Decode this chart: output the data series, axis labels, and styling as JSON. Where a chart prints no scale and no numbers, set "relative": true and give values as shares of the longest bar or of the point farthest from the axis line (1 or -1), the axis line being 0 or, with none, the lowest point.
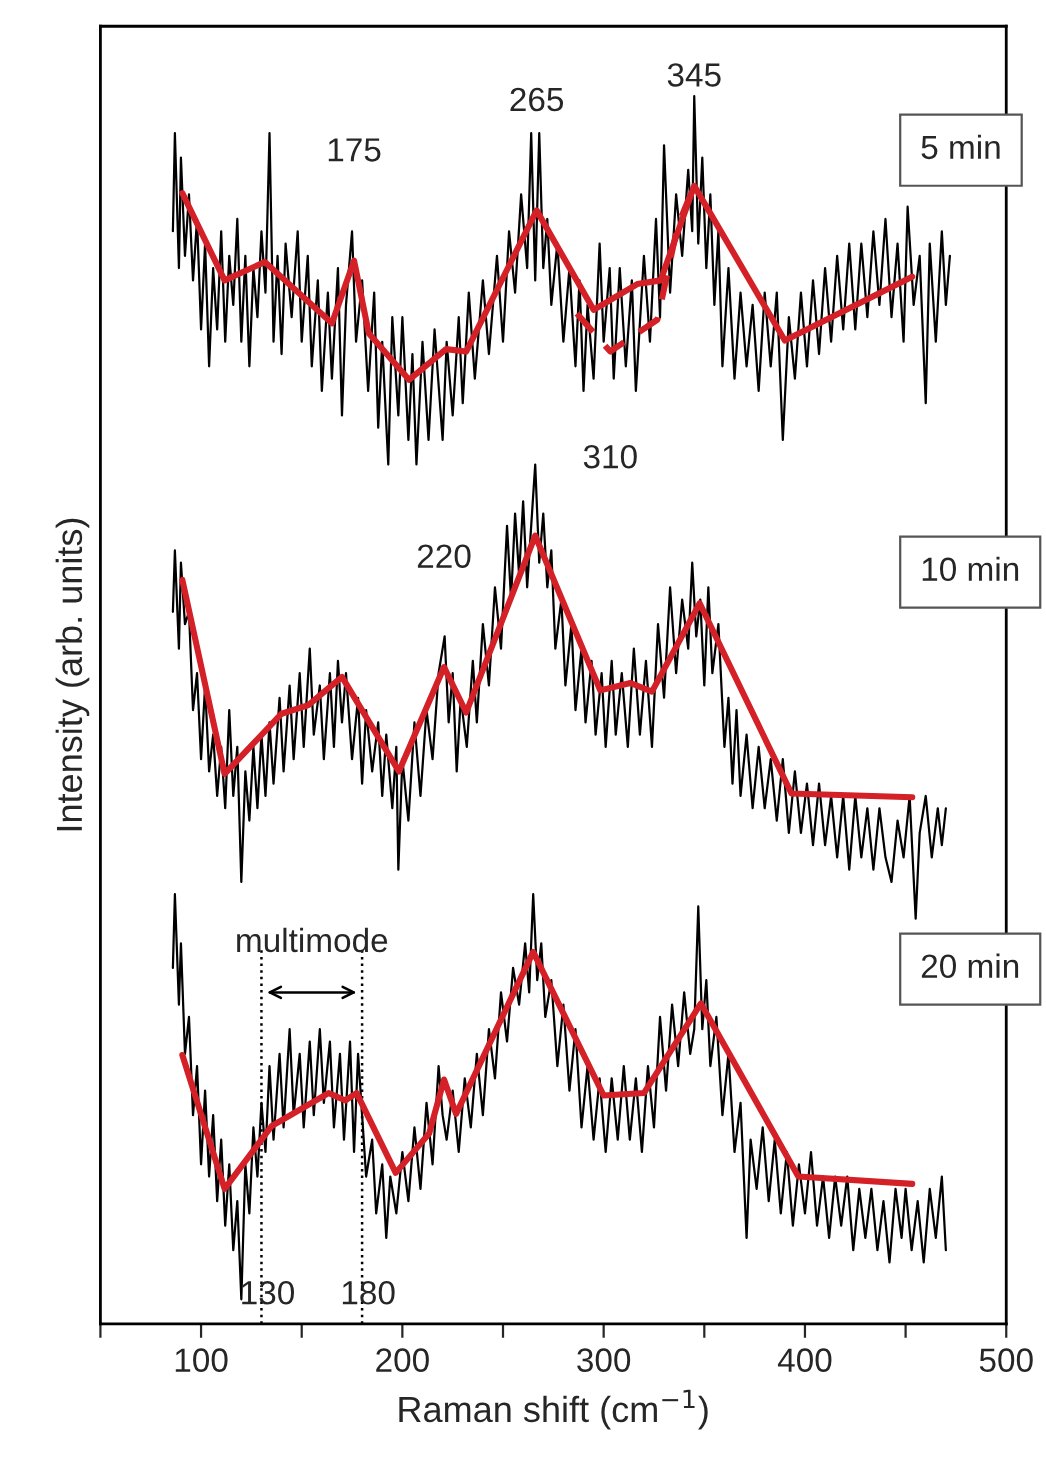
{
  "chart_data": {
    "type": "line",
    "relative": true,
    "xlabel": "Raman shift (cm$^{−1}$)",
    "ylabel": "Intensity (arb. units)",
    "xlim": [
      50,
      500
    ],
    "xticks": [
      {
        "value": 50,
        "label": null
      },
      100,
      {
        "value": 150,
        "label": null
      },
      200,
      {
        "value": 250,
        "label": null
      },
      300,
      {
        "value": 350,
        "label": null
      },
      400,
      {
        "value": 450,
        "label": null
      },
      500
    ],
    "grid": false,
    "legend": false,
    "marker": "none",
    "series": [
      {
        "name": "5 min",
        "color": "#000000",
        "x": [
          86,
          87,
          89,
          90,
          92,
          94,
          96,
          98,
          100,
          102,
          104,
          106,
          108,
          110,
          112,
          114,
          116,
          118,
          120,
          122,
          124,
          126,
          128,
          130,
          132,
          134,
          136,
          138,
          140,
          142,
          145,
          148,
          150,
          153,
          155,
          158,
          160,
          163,
          165,
          168,
          170,
          172,
          175,
          177,
          180,
          183,
          186,
          188,
          190,
          193,
          195,
          198,
          200,
          203,
          205,
          207,
          210,
          213,
          216,
          220,
          222,
          225,
          228,
          230,
          233,
          236,
          240,
          243,
          247,
          250,
          253,
          256,
          259,
          262,
          264,
          266,
          268,
          270,
          272,
          274,
          277,
          280,
          283,
          286,
          288,
          290,
          292,
          295,
          298,
          300,
          303,
          305,
          308,
          311,
          314,
          316,
          320,
          323,
          326,
          328,
          330,
          333,
          336,
          339,
          342,
          344,
          345,
          347,
          349,
          351,
          353,
          355,
          357,
          359,
          362,
          365,
          368,
          371,
          374,
          377,
          380,
          383,
          386,
          389,
          392,
          395,
          398,
          401,
          404,
          407,
          410,
          413,
          416,
          419,
          422,
          425,
          428,
          431,
          434,
          437,
          440,
          443,
          446,
          449,
          451,
          454,
          457,
          460,
          462,
          465,
          468,
          470,
          472
        ],
        "values": [
          0.89,
          0.97,
          0.86,
          0.95,
          0.87,
          0.92,
          0.85,
          0.9,
          0.81,
          0.88,
          0.78,
          0.86,
          0.81,
          0.89,
          0.8,
          0.87,
          0.83,
          0.9,
          0.8,
          0.87,
          0.78,
          0.86,
          0.82,
          0.89,
          0.84,
          0.97,
          0.8,
          0.87,
          0.79,
          0.88,
          0.82,
          0.89,
          0.8,
          0.87,
          0.78,
          0.85,
          0.76,
          0.84,
          0.77,
          0.86,
          0.74,
          0.83,
          0.89,
          0.8,
          0.85,
          0.76,
          0.84,
          0.73,
          0.8,
          0.7,
          0.82,
          0.74,
          0.82,
          0.72,
          0.79,
          0.7,
          0.8,
          0.72,
          0.81,
          0.72,
          0.8,
          0.74,
          0.82,
          0.75,
          0.84,
          0.77,
          0.85,
          0.79,
          0.87,
          0.8,
          0.89,
          0.84,
          0.92,
          0.86,
          0.97,
          0.85,
          0.97,
          0.86,
          0.9,
          0.83,
          0.88,
          0.8,
          0.86,
          0.78,
          0.85,
          0.76,
          0.83,
          0.77,
          0.88,
          0.8,
          0.86,
          0.77,
          0.86,
          0.78,
          0.85,
          0.76,
          0.87,
          0.8,
          0.9,
          0.82,
          0.96,
          0.84,
          0.92,
          0.87,
          0.94,
          0.89,
          1.0,
          0.88,
          0.95,
          0.86,
          0.92,
          0.83,
          0.89,
          0.78,
          0.86,
          0.77,
          0.84,
          0.78,
          0.83,
          0.76,
          0.84,
          0.78,
          0.84,
          0.72,
          0.82,
          0.77,
          0.84,
          0.78,
          0.85,
          0.79,
          0.86,
          0.8,
          0.87,
          0.81,
          0.88,
          0.81,
          0.88,
          0.82,
          0.89,
          0.83,
          0.9,
          0.82,
          0.88,
          0.8,
          0.91,
          0.83,
          0.87,
          0.75,
          0.88,
          0.8,
          0.89,
          0.83,
          0.87
        ]
      },
      {
        "color": "#d42027",
        "x": [
          90.7,
          111.7,
          131.7,
          165,
          176,
          183.3,
          203.3,
          221.7,
          231.7,
          266.7,
          295,
          316.7,
          328.3,
          345,
          390,
          453.3
        ],
        "values": [
          0.921,
          0.85,
          0.865,
          0.815,
          0.866,
          0.807,
          0.769,
          0.794,
          0.792,
          0.907,
          0.826,
          0.847,
          0.85,
          0.927,
          0.801,
          0.853
        ]
      },
      {
        "color": "#d42027",
        "line_style": "dashed",
        "x": [
          286.7,
          303.3,
          326.7,
          336.7,
          345
        ],
        "values": [
          0.823,
          0.792,
          0.818,
          0.894,
          0.927
        ]
      },
      {
        "name": "10 min",
        "color": "#000000",
        "x": [
          86,
          87,
          89,
          90,
          92,
          94,
          96,
          98,
          100,
          102,
          104,
          106,
          108,
          110,
          112,
          114,
          116,
          118,
          120,
          122,
          124,
          126,
          128,
          130,
          132,
          134,
          136,
          139,
          141,
          144,
          146,
          149,
          151,
          154,
          156,
          159,
          161,
          164,
          166,
          168,
          170,
          172,
          175,
          178,
          180,
          182,
          185,
          188,
          190,
          192,
          195,
          197,
          198,
          200,
          203,
          206,
          209,
          212,
          215,
          218,
          221,
          223,
          225,
          227,
          229,
          232,
          235,
          237,
          240,
          243,
          246,
          249,
          252,
          254,
          256,
          258,
          260,
          262,
          264,
          266,
          268,
          270,
          272,
          274,
          276,
          279,
          281,
          284,
          286,
          289,
          291,
          294,
          296,
          299,
          301,
          304,
          306,
          309,
          312,
          315,
          318,
          321,
          324,
          327,
          330,
          333,
          336,
          339,
          342,
          344,
          346,
          348,
          350,
          352,
          354,
          357,
          360,
          362,
          364,
          366,
          368,
          371,
          374,
          377,
          380,
          383,
          386,
          389,
          392,
          395,
          398,
          401,
          404,
          407,
          410,
          413,
          416,
          419,
          422,
          425,
          428,
          431,
          434,
          437,
          440,
          443,
          446,
          449,
          452,
          455,
          457,
          460,
          463,
          466,
          468,
          470
        ],
        "values": [
          0.58,
          0.63,
          0.55,
          0.62,
          0.57,
          0.58,
          0.5,
          0.53,
          0.46,
          0.52,
          0.45,
          0.48,
          0.43,
          0.47,
          0.42,
          0.5,
          0.43,
          0.47,
          0.36,
          0.45,
          0.41,
          0.47,
          0.42,
          0.48,
          0.43,
          0.49,
          0.44,
          0.51,
          0.45,
          0.52,
          0.46,
          0.53,
          0.47,
          0.55,
          0.48,
          0.52,
          0.46,
          0.53,
          0.47,
          0.54,
          0.49,
          0.53,
          0.46,
          0.51,
          0.44,
          0.5,
          0.45,
          0.49,
          0.43,
          0.48,
          0.42,
          0.47,
          0.37,
          0.46,
          0.41,
          0.49,
          0.43,
          0.5,
          0.46,
          0.53,
          0.56,
          0.49,
          0.53,
          0.45,
          0.51,
          0.47,
          0.54,
          0.49,
          0.57,
          0.52,
          0.6,
          0.55,
          0.65,
          0.59,
          0.66,
          0.61,
          0.67,
          0.6,
          0.65,
          0.7,
          0.62,
          0.66,
          0.6,
          0.63,
          0.55,
          0.59,
          0.52,
          0.57,
          0.5,
          0.55,
          0.49,
          0.54,
          0.48,
          0.53,
          0.47,
          0.54,
          0.48,
          0.53,
          0.47,
          0.55,
          0.48,
          0.54,
          0.47,
          0.57,
          0.51,
          0.6,
          0.53,
          0.59,
          0.55,
          0.62,
          0.56,
          0.59,
          0.52,
          0.6,
          0.53,
          0.57,
          0.47,
          0.51,
          0.44,
          0.5,
          0.43,
          0.48,
          0.42,
          0.47,
          0.42,
          0.46,
          0.41,
          0.46,
          0.4,
          0.45,
          0.4,
          0.44,
          0.39,
          0.44,
          0.39,
          0.43,
          0.38,
          0.43,
          0.37,
          0.43,
          0.38,
          0.42,
          0.37,
          0.42,
          0.38,
          0.36,
          0.41,
          0.38,
          0.43,
          0.33,
          0.4,
          0.43,
          0.38,
          0.42,
          0.39,
          0.42
        ]
      },
      {
        "color": "#d42027",
        "x": [
          90.7,
          111.7,
          140,
          153.3,
          170,
          198.3,
          220.7,
          231.7,
          266,
          298.3,
          313.3,
          324,
          347.7,
          393.3,
          453.3
        ],
        "values": [
          0.606,
          0.448,
          0.497,
          0.504,
          0.527,
          0.45,
          0.535,
          0.498,
          0.642,
          0.516,
          0.522,
          0.515,
          0.587,
          0.432,
          0.429
        ]
      },
      {
        "name": "20 min",
        "color": "#000000",
        "x": [
          86,
          87,
          89,
          90,
          92,
          94,
          96,
          98,
          100,
          102,
          104,
          106,
          108,
          110,
          112,
          114,
          116,
          118,
          120,
          122,
          124,
          126,
          128,
          130,
          132,
          134,
          136,
          139,
          141,
          144,
          146,
          149,
          151,
          154,
          156,
          159,
          161,
          164,
          166,
          169,
          171,
          174,
          176,
          178,
          180,
          182,
          185,
          187,
          190,
          192,
          194,
          197,
          200,
          203,
          206,
          209,
          212,
          215,
          218,
          220,
          222,
          225,
          228,
          231,
          234,
          237,
          240,
          243,
          246,
          249,
          252,
          255,
          258,
          261,
          263,
          265,
          267,
          269,
          271,
          274,
          277,
          280,
          283,
          286,
          289,
          292,
          295,
          298,
          301,
          304,
          307,
          310,
          313,
          316,
          319,
          322,
          325,
          328,
          331,
          334,
          337,
          340,
          343,
          345,
          347,
          349,
          351,
          353,
          356,
          359,
          362,
          365,
          368,
          371,
          373,
          376,
          379,
          382,
          385,
          388,
          391,
          394,
          397,
          400,
          403,
          406,
          409,
          412,
          415,
          418,
          421,
          424,
          427,
          430,
          433,
          436,
          439,
          442,
          445,
          448,
          450,
          453,
          456,
          459,
          462,
          465,
          468,
          470
        ],
        "values": [
          0.29,
          0.35,
          0.26,
          0.31,
          0.22,
          0.25,
          0.17,
          0.21,
          0.13,
          0.19,
          0.12,
          0.17,
          0.1,
          0.15,
          0.08,
          0.13,
          0.06,
          0.1,
          0.02,
          0.13,
          0.09,
          0.16,
          0.12,
          0.18,
          0.14,
          0.21,
          0.15,
          0.22,
          0.16,
          0.24,
          0.17,
          0.22,
          0.16,
          0.23,
          0.17,
          0.24,
          0.18,
          0.23,
          0.16,
          0.22,
          0.15,
          0.23,
          0.14,
          0.22,
          0.17,
          0.12,
          0.15,
          0.09,
          0.13,
          0.07,
          0.12,
          0.09,
          0.14,
          0.1,
          0.16,
          0.11,
          0.18,
          0.13,
          0.21,
          0.17,
          0.15,
          0.19,
          0.14,
          0.2,
          0.16,
          0.22,
          0.17,
          0.24,
          0.2,
          0.27,
          0.23,
          0.29,
          0.26,
          0.31,
          0.27,
          0.35,
          0.28,
          0.31,
          0.25,
          0.28,
          0.21,
          0.26,
          0.19,
          0.24,
          0.16,
          0.21,
          0.15,
          0.2,
          0.14,
          0.2,
          0.15,
          0.21,
          0.15,
          0.2,
          0.14,
          0.21,
          0.16,
          0.25,
          0.19,
          0.26,
          0.21,
          0.27,
          0.22,
          0.24,
          0.34,
          0.24,
          0.28,
          0.21,
          0.25,
          0.17,
          0.22,
          0.14,
          0.18,
          0.07,
          0.15,
          0.11,
          0.16,
          0.1,
          0.15,
          0.09,
          0.14,
          0.08,
          0.13,
          0.09,
          0.14,
          0.08,
          0.12,
          0.07,
          0.12,
          0.08,
          0.12,
          0.06,
          0.11,
          0.07,
          0.11,
          0.06,
          0.1,
          0.05,
          0.11,
          0.07,
          0.11,
          0.06,
          0.1,
          0.05,
          0.11,
          0.07,
          0.12,
          0.06
        ]
      },
      {
        "color": "#d42027",
        "x": [
          90.7,
          111.7,
          135,
          163.3,
          171.7,
          177.3,
          196.7,
          213.3,
          220.7,
          226.7,
          265,
          300,
          320,
          348.3,
          396.7,
          453.3
        ],
        "values": [
          0.219,
          0.11,
          0.161,
          0.188,
          0.182,
          0.188,
          0.123,
          0.155,
          0.199,
          0.171,
          0.303,
          0.186,
          0.188,
          0.261,
          0.12,
          0.114
        ]
      }
    ],
    "ref_lines": [
      {
        "axis": "x",
        "value": 130,
        "label": "130",
        "line_style": "dotted"
      },
      {
        "axis": "x",
        "value": 180,
        "label": "180",
        "line_style": "dotted"
      }
    ],
    "annotations": [
      {
        "text": "175",
        "x": 176,
        "y": 0.866
      },
      {
        "text": "265",
        "x": 266.7,
        "y": 0.907
      },
      {
        "text": "345",
        "x": 345,
        "y": 0.927
      },
      {
        "text": "310",
        "x": 303.3,
        "y": 0.792
      },
      {
        "text": "220",
        "x": 220.7,
        "y": 0.535
      },
      "multimode"
    ]
  }
}
